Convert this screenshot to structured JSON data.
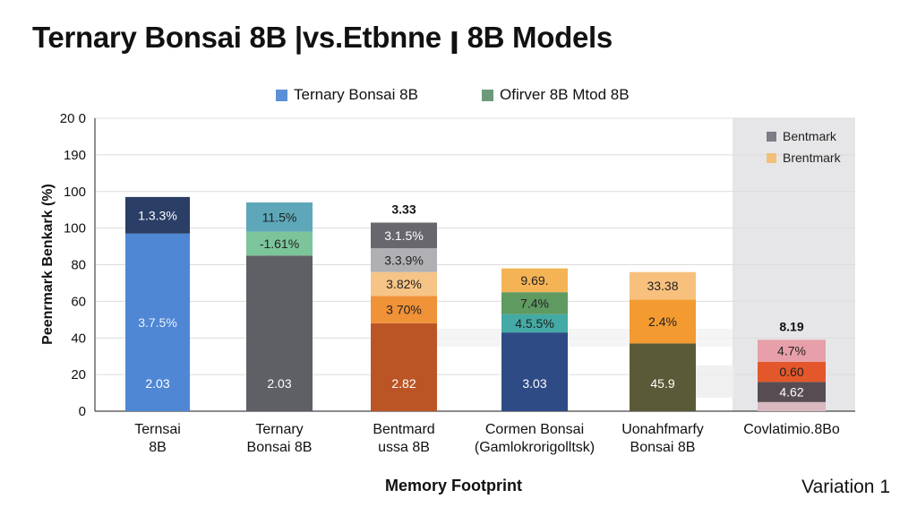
{
  "chart_data": {
    "type": "bar",
    "title": "Ternary Bonsai 8B |vs.Etbnne ꞁ 8B Models",
    "xlabel": "Memory Footprint",
    "ylabel": "Peenrmark Benkark (%)",
    "yticks": [
      "0",
      "20",
      "40",
      "60",
      "80",
      "100",
      "100",
      "190",
      "20 0"
    ],
    "ytick_values": [
      0,
      20,
      40,
      60,
      80,
      100,
      120,
      140,
      160
    ],
    "ylim": [
      0,
      160
    ],
    "grid": true,
    "legend": [
      {
        "label": "Ternary Bonsai 8B",
        "color": "#5b8fd6"
      },
      {
        "label": "Ofirver 8B Mtod 8B",
        "color": "#6e9a7c"
      }
    ],
    "inner_legend": [
      {
        "label": "Bentmark",
        "color": "#7d7d86"
      },
      {
        "label": "Brentmark",
        "color": "#f2c078"
      }
    ],
    "categories": [
      {
        "label": [
          "Ternsai",
          "8B"
        ],
        "base_label": "2.03",
        "top_label": "",
        "segments": [
          {
            "from": 0,
            "to": 97,
            "color": "#4f87d4",
            "label": "3.7.5%"
          },
          {
            "from": 97,
            "to": 117,
            "color": "#2a3e66",
            "label": "1.3.3%"
          }
        ]
      },
      {
        "label": [
          "Ternary",
          "Bonsai 8B"
        ],
        "base_label": "2.03",
        "top_label": "",
        "segments": [
          {
            "from": 0,
            "to": 85,
            "color": "#5e6066",
            "label": ""
          },
          {
            "from": 85,
            "to": 98,
            "color": "#7cc59b",
            "label": "-1.61%"
          },
          {
            "from": 98,
            "to": 114,
            "color": "#5da7b8",
            "label": "11.5%"
          }
        ]
      },
      {
        "label": [
          "Bentmard",
          "ussa 8B"
        ],
        "base_label": "2.82",
        "top_label": "3.33",
        "segments": [
          {
            "from": 0,
            "to": 48,
            "color": "#bb5526",
            "label": ""
          },
          {
            "from": 48,
            "to": 63,
            "color": "#f09238",
            "label": "3 70%"
          },
          {
            "from": 63,
            "to": 76,
            "color": "#f6c486",
            "label": "3.82%"
          },
          {
            "from": 76,
            "to": 89,
            "color": "#b0b0b4",
            "label": "3.3.9%"
          },
          {
            "from": 89,
            "to": 103,
            "color": "#67676d",
            "label": "3.1.5%"
          }
        ]
      },
      {
        "label": [
          "Cormen Bonsai",
          "(Gamlokrorigolltsk)"
        ],
        "base_label": "3.03",
        "top_label": "",
        "segments": [
          {
            "from": 0,
            "to": 43,
            "color": "#2f4b86",
            "label": ""
          },
          {
            "from": 43,
            "to": 53,
            "color": "#43aaa5",
            "label": "4.5.5%"
          },
          {
            "from": 53,
            "to": 65,
            "color": "#5f9a61",
            "label": "7.4%"
          },
          {
            "from": 65,
            "to": 78,
            "color": "#f4b455",
            "label": "9.69."
          }
        ]
      },
      {
        "label": [
          "Uonahfmarfy",
          "Bonsai 8B"
        ],
        "base_label": "45.9",
        "top_label": "",
        "segments": [
          {
            "from": 0,
            "to": 37,
            "color": "#5a5a38",
            "label": ""
          },
          {
            "from": 37,
            "to": 61,
            "color": "#f39a30",
            "label": "2.4%"
          },
          {
            "from": 61,
            "to": 76,
            "color": "#f7c17d",
            "label": "33.38"
          }
        ]
      },
      {
        "label": [
          "Covlatimio.8Bo"
        ],
        "base_label": "",
        "top_label": "8.19",
        "segments": [
          {
            "from": 0,
            "to": 5,
            "color": "#d8b9c0",
            "label": ""
          },
          {
            "from": 5,
            "to": 16,
            "color": "#564c52",
            "label": "4.62"
          },
          {
            "from": 16,
            "to": 27,
            "color": "#e4572a",
            "label": "0.60"
          },
          {
            "from": 27,
            "to": 39,
            "color": "#e7a0a9",
            "label": "4.7%"
          }
        ]
      }
    ]
  },
  "footer": {
    "variation": "Variation 1"
  }
}
